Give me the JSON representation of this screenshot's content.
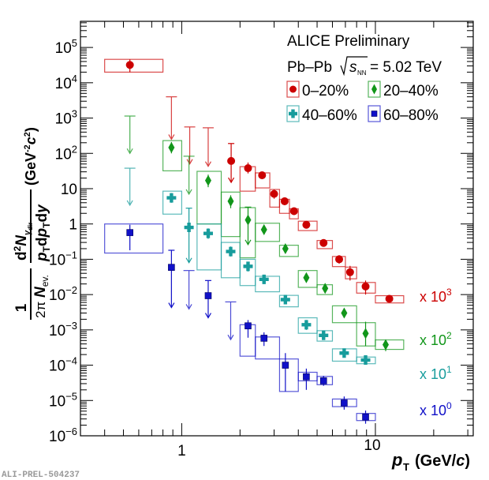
{
  "watermark": "ALI-PREL-504237",
  "chart_data": {
    "type": "scatter",
    "title": "",
    "annotations": {
      "experiment": "ALICE Preliminary",
      "system": "Pb–Pb",
      "energy_symbol": "s",
      "energy_subscript": "NN",
      "energy_value": "= 5.02 TeV"
    },
    "xlabel": "p_T (GeV/c)",
    "xlabel_main": "p",
    "xlabel_sub": "T",
    "xlabel_unit": "(GeV/c)",
    "ylabel": "1/(2π N_ev.) d²N_γdir/(p_T dp_T dy) (GeV⁻²c²)",
    "xscale": "log",
    "yscale": "log",
    "xlim": [
      0.3,
      32
    ],
    "ylim": [
      1e-06,
      550000.0
    ],
    "xticks": [
      {
        "value": 1,
        "label": "1"
      },
      {
        "value": 10,
        "label": "10"
      }
    ],
    "yticks": [
      {
        "value": 1e-06,
        "base": "10",
        "exp": "−6"
      },
      {
        "value": 1e-05,
        "base": "10",
        "exp": "−5"
      },
      {
        "value": 0.0001,
        "base": "10",
        "exp": "−4"
      },
      {
        "value": 0.001,
        "base": "10",
        "exp": "−3"
      },
      {
        "value": 0.01,
        "base": "10",
        "exp": "−2"
      },
      {
        "value": 0.1,
        "base": "10",
        "exp": "−1"
      },
      {
        "value": 1,
        "base": "1",
        "exp": ""
      },
      {
        "value": 10,
        "base": "10",
        "exp": ""
      },
      {
        "value": 100,
        "base": "10",
        "exp": "2"
      },
      {
        "value": 1000,
        "base": "10",
        "exp": "3"
      },
      {
        "value": 10000,
        "base": "10",
        "exp": "4"
      },
      {
        "value": 100000,
        "base": "10",
        "exp": "5"
      }
    ],
    "legend_position": "top-right",
    "series": [
      {
        "name": "0–20%",
        "color": "#cc0000",
        "marker": "circle",
        "scale_label": "x 10",
        "scale_exp": "3",
        "points": [
          {
            "x": 0.54,
            "y": 32000,
            "ylo": 20000,
            "yhi": 46000,
            "sys_x": [
              0.4,
              0.8
            ],
            "sys_y": [
              20000,
              46000
            ]
          },
          {
            "x": 1.8,
            "y": 61,
            "ylo": 15,
            "yhi": 190,
            "lower_is_limit": true
          },
          {
            "x": 2.2,
            "y": 38,
            "ylo": 27,
            "yhi": 55,
            "sys_x": [
              2.0,
              2.4
            ],
            "sys_y": [
              8.5,
              42
            ]
          },
          {
            "x": 2.6,
            "y": 24,
            "ylo": 19,
            "yhi": 30,
            "sys_x": [
              2.4,
              2.85
            ],
            "sys_y": [
              10.5,
              28
            ]
          },
          {
            "x": 3.0,
            "y": 7.1,
            "ylo": 5.2,
            "yhi": 9.4,
            "sys_x": [
              2.85,
              3.2
            ],
            "sys_y": [
              3.0,
              9.5
            ]
          },
          {
            "x": 3.4,
            "y": 4.4,
            "ylo": 3.4,
            "yhi": 5.6,
            "sys_x": [
              3.2,
              3.6
            ],
            "sys_y": [
              2.0,
              5.0
            ]
          },
          {
            "x": 3.8,
            "y": 2.3,
            "ylo": 1.8,
            "yhi": 2.8,
            "sys_x": [
              3.6,
              4.0
            ],
            "sys_y": [
              1.4,
              2.7
            ]
          },
          {
            "x": 4.4,
            "y": 0.95,
            "ylo": 0.78,
            "yhi": 1.15,
            "sys_x": [
              4.0,
              5.0
            ],
            "sys_y": [
              0.65,
              1.2
            ]
          },
          {
            "x": 5.4,
            "y": 0.29,
            "ylo": 0.23,
            "yhi": 0.36,
            "sys_x": [
              5.0,
              6.0
            ],
            "sys_y": [
              0.2,
              0.34
            ]
          },
          {
            "x": 6.5,
            "y": 0.1,
            "ylo": 0.075,
            "yhi": 0.13,
            "sys_x": [
              6.0,
              7.0
            ],
            "sys_y": [
              0.062,
              0.12
            ]
          },
          {
            "x": 7.4,
            "y": 0.043,
            "ylo": 0.025,
            "yhi": 0.065,
            "sys_x": [
              7.0,
              8.0
            ],
            "sys_y": [
              0.028,
              0.06
            ]
          },
          {
            "x": 8.9,
            "y": 0.017,
            "ylo": 0.01,
            "yhi": 0.025,
            "sys_x": [
              8.0,
              10.0
            ],
            "sys_y": [
              0.011,
              0.022
            ]
          },
          {
            "x": 11.8,
            "y": 0.0076,
            "ylo": 0.006,
            "yhi": 0.0095,
            "sys_x": [
              10.0,
              14.0
            ],
            "sys_y": [
              0.0058,
              0.0093
            ]
          }
        ],
        "upper_limits": [
          {
            "x": 0.885,
            "top": 4000,
            "tip": 250
          },
          {
            "x": 1.1,
            "top": 560,
            "tip": 50
          },
          {
            "x": 1.37,
            "top": 530,
            "tip": 43
          }
        ]
      },
      {
        "name": "20–40%",
        "color": "#11961a",
        "marker": "diamond",
        "scale_label": "x 10",
        "scale_exp": "2",
        "points": [
          {
            "x": 0.885,
            "y": 146,
            "ylo": 100,
            "yhi": 210,
            "sys_x": [
              0.8,
              1.0
            ],
            "sys_y": [
              32,
              230
            ]
          },
          {
            "x": 1.37,
            "y": 17,
            "ylo": 11,
            "yhi": 25,
            "sys_x": [
              1.2,
              1.6
            ],
            "sys_y": [
              1.0,
              31
            ]
          },
          {
            "x": 1.79,
            "y": 4.4,
            "ylo": 2.8,
            "yhi": 6.5,
            "sys_x": [
              1.6,
              2.0
            ],
            "sys_y": [
              0.44,
              8.0
            ]
          },
          {
            "x": 2.2,
            "y": 1.3,
            "ylo": 0.26,
            "yhi": 3.0,
            "lower_is_limit": true,
            "sys_x": [
              2.0,
              2.4
            ],
            "sys_y": [
              0.11,
              2.9
            ]
          },
          {
            "x": 2.66,
            "y": 0.69,
            "ylo": 0.5,
            "yhi": 0.9,
            "sys_x": [
              2.4,
              3.2
            ],
            "sys_y": [
              0.32,
              1.05
            ]
          },
          {
            "x": 3.43,
            "y": 0.2,
            "ylo": 0.16,
            "yhi": 0.25,
            "sys_x": [
              3.2,
              4.0
            ],
            "sys_y": [
              0.12,
              0.25
            ]
          },
          {
            "x": 4.4,
            "y": 0.03,
            "ylo": 0.022,
            "yhi": 0.04,
            "sys_x": [
              4.0,
              5.0
            ],
            "sys_y": [
              0.016,
              0.048
            ]
          },
          {
            "x": 5.5,
            "y": 0.015,
            "ylo": 0.011,
            "yhi": 0.02,
            "sys_x": [
              5.0,
              6.0
            ],
            "sys_y": [
              0.01,
              0.019
            ]
          },
          {
            "x": 6.9,
            "y": 0.003,
            "ylo": 0.0022,
            "yhi": 0.004,
            "sys_x": [
              6.0,
              8.0
            ],
            "sys_y": [
              0.0016,
              0.0048
            ]
          },
          {
            "x": 8.9,
            "y": 0.00079,
            "ylo": 0.00035,
            "yhi": 0.0017,
            "sys_x": [
              8.0,
              10.0
            ],
            "sys_y": [
              0.00035,
              0.0016
            ]
          },
          {
            "x": 11.3,
            "y": 0.00038,
            "ylo": 0.00025,
            "yhi": 0.00052,
            "sys_x": [
              10.0,
              14.0
            ],
            "sys_y": [
              0.00028,
              0.00052
            ]
          }
        ],
        "upper_limits": [
          {
            "x": 0.54,
            "top": 1140,
            "tip": 100
          },
          {
            "x": 1.09,
            "top": 83,
            "tip": 7
          }
        ]
      },
      {
        "name": "40–60%",
        "color": "#179c9c",
        "marker": "cross",
        "scale_label": "x 10",
        "scale_exp": "1",
        "points": [
          {
            "x": 0.885,
            "y": 5.5,
            "ylo": 4.0,
            "yhi": 7.5,
            "sys_x": [
              0.8,
              1.0
            ],
            "sys_y": [
              1.9,
              8.5
            ]
          },
          {
            "x": 1.09,
            "y": 0.8,
            "ylo": 0.08,
            "yhi": 2.8,
            "lower_is_limit": true
          },
          {
            "x": 1.37,
            "y": 0.54,
            "ylo": 0.38,
            "yhi": 0.75,
            "sys_x": [
              1.2,
              1.6
            ],
            "sys_y": [
              0.05,
              1.0
            ]
          },
          {
            "x": 1.79,
            "y": 0.166,
            "ylo": 0.12,
            "yhi": 0.23,
            "sys_x": [
              1.6,
              2.0
            ],
            "sys_y": [
              0.03,
              0.3
            ]
          },
          {
            "x": 2.2,
            "y": 0.063,
            "ylo": 0.045,
            "yhi": 0.085,
            "sys_x": [
              2.0,
              2.4
            ],
            "sys_y": [
              0.018,
              0.1
            ]
          },
          {
            "x": 2.66,
            "y": 0.027,
            "ylo": 0.02,
            "yhi": 0.034,
            "sys_x": [
              2.4,
              3.2
            ],
            "sys_y": [
              0.012,
              0.033
            ]
          },
          {
            "x": 3.43,
            "y": 0.0072,
            "ylo": 0.0055,
            "yhi": 0.009,
            "sys_x": [
              3.2,
              4.0
            ],
            "sys_y": [
              0.0045,
              0.0095
            ]
          },
          {
            "x": 4.4,
            "y": 0.0014,
            "ylo": 0.001,
            "yhi": 0.0019,
            "sys_x": [
              4.0,
              5.0
            ],
            "sys_y": [
              0.0008,
              0.0022
            ]
          },
          {
            "x": 5.4,
            "y": 0.0007,
            "ylo": 0.00055,
            "yhi": 0.0009,
            "sys_x": [
              5.0,
              6.0
            ],
            "sys_y": [
              0.00048,
              0.00095
            ]
          },
          {
            "x": 6.9,
            "y": 0.00022,
            "ylo": 0.00017,
            "yhi": 0.00028,
            "sys_x": [
              6.0,
              8.0
            ],
            "sys_y": [
              0.00013,
              0.00029
            ]
          },
          {
            "x": 8.9,
            "y": 0.00014,
            "ylo": 0.00011,
            "yhi": 0.00017,
            "sys_x": [
              8.0,
              10.0
            ],
            "sys_y": [
              0.00011,
              0.00017
            ]
          }
        ],
        "upper_limits": [
          {
            "x": 0.54,
            "top": 38,
            "tip": 3.4
          }
        ]
      },
      {
        "name": "60–80%",
        "color": "#1010c8",
        "marker": "square",
        "scale_label": "x 10",
        "scale_exp": "0",
        "points": [
          {
            "x": 0.54,
            "y": 0.57,
            "ylo": 0.18,
            "yhi": 0.95,
            "sys_x": [
              0.4,
              0.8
            ],
            "sys_y": [
              0.15,
              1.0
            ]
          },
          {
            "x": 0.885,
            "y": 0.059,
            "ylo": 0.0043,
            "yhi": 0.18,
            "lower_is_limit": true
          },
          {
            "x": 1.37,
            "y": 0.0093,
            "ylo": 0.0022,
            "yhi": 0.025,
            "lower_is_limit": true
          },
          {
            "x": 2.2,
            "y": 0.0013,
            "ylo": 0.0006,
            "yhi": 0.0019,
            "sys_x": [
              2.0,
              2.4
            ],
            "sys_y": [
              0.00018,
              0.0014
            ]
          },
          {
            "x": 2.66,
            "y": 0.00058,
            "ylo": 0.00035,
            "yhi": 0.00085,
            "sys_x": [
              2.4,
              3.2
            ],
            "sys_y": [
              0.00015,
              0.00063
            ]
          },
          {
            "x": 3.43,
            "y": 0.0001,
            "ylo": 1.8e-05,
            "yhi": 0.00022,
            "sys_x": [
              3.2,
              4.0
            ],
            "sys_y": [
              1.8e-05,
              0.00015
            ]
          },
          {
            "x": 4.4,
            "y": 4.7e-05,
            "ylo": 2e-05,
            "yhi": 8e-05,
            "sys_x": [
              4.0,
              5.0
            ],
            "sys_y": [
              3.6e-05,
              6.3e-05
            ]
          },
          {
            "x": 5.4,
            "y": 3.6e-05,
            "ylo": 2.6e-05,
            "yhi": 5e-05,
            "sys_x": [
              5.0,
              6.0
            ],
            "sys_y": [
              2.8e-05,
              4.8e-05
            ]
          },
          {
            "x": 6.9,
            "y": 8.5e-06,
            "ylo": 5.5e-06,
            "yhi": 1.3e-05,
            "sys_x": [
              6.0,
              8.0
            ],
            "sys_y": [
              6.7e-06,
              1.1e-05
            ]
          },
          {
            "x": 8.9,
            "y": 3.4e-06,
            "ylo": 2.2e-06,
            "yhi": 5.2e-06,
            "sys_x": [
              8.0,
              10.0
            ],
            "sys_y": [
              2.7e-06,
              4.3e-06
            ]
          }
        ],
        "upper_limits": [
          {
            "x": 1.09,
            "top": 0.048,
            "tip": 0.0039
          },
          {
            "x": 1.79,
            "top": 0.0062,
            "tip": 0.00053
          }
        ]
      }
    ]
  }
}
